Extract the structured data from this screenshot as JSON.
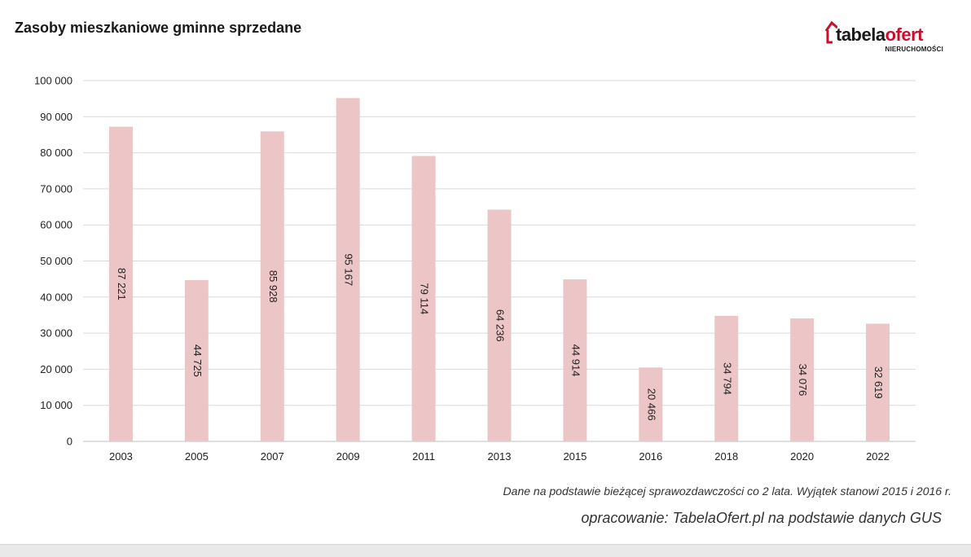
{
  "logo": {
    "word_part1": "tabela",
    "word_part2": "ofert",
    "subtitle": "NIERUCHOMOŚCI"
  },
  "colors": {
    "bar": "#ecc6c6",
    "gridline": "#d9d9d9",
    "axis_line": "#bfbfbf",
    "brand_red": "#c8102e"
  },
  "chart_data": {
    "type": "bar",
    "title": "Zasoby mieszkaniowe gminne sprzedane",
    "xlabel": "",
    "ylabel": "",
    "categories": [
      "2003",
      "2005",
      "2007",
      "2009",
      "2011",
      "2013",
      "2015",
      "2016",
      "2018",
      "2020",
      "2022"
    ],
    "values": [
      87221,
      44725,
      85928,
      95167,
      79114,
      64236,
      44914,
      20466,
      34794,
      34076,
      32619
    ],
    "value_labels": [
      "87 221",
      "44 725",
      "85 928",
      "95 167",
      "79 114",
      "64 236",
      "44 914",
      "20 466",
      "34 794",
      "34 076",
      "32 619"
    ],
    "ylim": [
      0,
      100000
    ],
    "yticks": [
      0,
      10000,
      20000,
      30000,
      40000,
      50000,
      60000,
      70000,
      80000,
      90000,
      100000
    ],
    "ytick_labels": [
      "0",
      "10 000",
      "20 000",
      "30 000",
      "40 000",
      "50 000",
      "60 000",
      "70 000",
      "80 000",
      "90 000",
      "100 000"
    ],
    "grid": true,
    "legend": "none",
    "data_label_orientation": "vertical"
  },
  "footer": {
    "note": "Dane na podstawie bieżącej sprawozdawczości co 2 lata. Wyjątek stanowi 2015 i 2016 r.",
    "source": "opracowanie: TabelaOfert.pl na podstawie danych GUS"
  }
}
